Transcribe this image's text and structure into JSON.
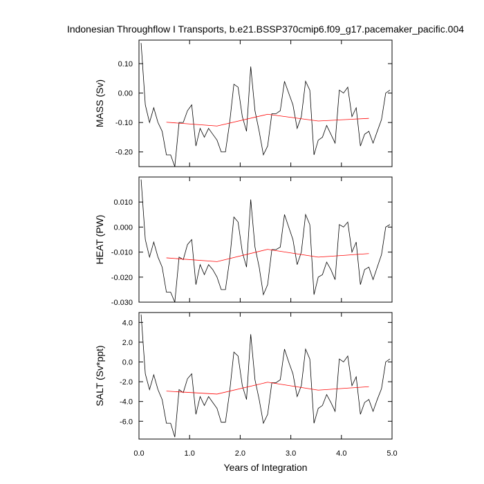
{
  "chart_data": {
    "type": "line",
    "title": "Indonesian Throughflow I Transports, b.e21.BSSP370cmip6.f09_g17.pacemaker_pacific.004",
    "xlabel": "Years of Integration",
    "xlim": [
      0,
      5
    ],
    "xticks": [
      0,
      1,
      2,
      3,
      4,
      5
    ],
    "xtick_labels": [
      "0.0",
      "1.0",
      "2.0",
      "3.0",
      "4.0",
      "5.0"
    ],
    "colors": {
      "raw": "#000000",
      "smoothed": "#ff0000"
    },
    "x_monthly": [
      0.042,
      0.125,
      0.208,
      0.292,
      0.375,
      0.458,
      0.542,
      0.625,
      0.708,
      0.792,
      0.875,
      0.958,
      1.042,
      1.125,
      1.208,
      1.292,
      1.375,
      1.458,
      1.542,
      1.625,
      1.708,
      1.792,
      1.875,
      1.958,
      2.042,
      2.125,
      2.208,
      2.292,
      2.375,
      2.458,
      2.542,
      2.625,
      2.708,
      2.792,
      2.875,
      2.958,
      3.042,
      3.125,
      3.208,
      3.292,
      3.375,
      3.458,
      3.542,
      3.625,
      3.708,
      3.792,
      3.875,
      3.958,
      4.042,
      4.125,
      4.208,
      4.292,
      4.375,
      4.458,
      4.542,
      4.625,
      4.708,
      4.792,
      4.875,
      4.958
    ],
    "x_annual": [
      0.542,
      1.542,
      2.542,
      3.542,
      4.542
    ],
    "panels": [
      {
        "ylabel": "MASS (Sv)",
        "ylim": [
          -0.25,
          0.18
        ],
        "yticks": [
          0.1,
          0.0,
          -0.1,
          -0.2
        ],
        "ytick_labels": [
          "0.10",
          "0.00",
          "-0.10",
          "-0.20"
        ],
        "raw": [
          0.17,
          -0.04,
          -0.1,
          -0.05,
          -0.1,
          -0.13,
          -0.21,
          -0.21,
          -0.25,
          -0.1,
          -0.1,
          -0.06,
          -0.04,
          -0.18,
          -0.12,
          -0.15,
          -0.12,
          -0.14,
          -0.16,
          -0.2,
          -0.2,
          -0.1,
          0.03,
          0.02,
          -0.08,
          -0.13,
          0.09,
          -0.06,
          -0.13,
          -0.21,
          -0.18,
          -0.07,
          -0.07,
          -0.06,
          0.04,
          0.0,
          -0.04,
          -0.12,
          -0.08,
          0.04,
          0.01,
          -0.21,
          -0.16,
          -0.15,
          -0.11,
          -0.14,
          -0.17,
          0.01,
          0.0,
          0.02,
          -0.08,
          -0.05,
          -0.18,
          -0.14,
          -0.13,
          -0.17,
          -0.13,
          -0.09,
          0.0,
          0.01
        ],
        "smoothed": [
          -0.099,
          -0.112,
          -0.072,
          -0.095,
          -0.086
        ]
      },
      {
        "ylabel": "HEAT (PW)",
        "ylim": [
          -0.03,
          0.02
        ],
        "yticks": [
          0.01,
          0.0,
          -0.01,
          -0.02,
          -0.03
        ],
        "ytick_labels": [
          "0.010",
          "0.000",
          "-0.010",
          "-0.020",
          "-0.030"
        ],
        "raw": [
          0.019,
          -0.005,
          -0.012,
          -0.006,
          -0.012,
          -0.016,
          -0.026,
          -0.026,
          -0.03,
          -0.012,
          -0.013,
          -0.007,
          -0.005,
          -0.023,
          -0.015,
          -0.019,
          -0.015,
          -0.017,
          -0.02,
          -0.025,
          -0.025,
          -0.013,
          0.004,
          0.002,
          -0.01,
          -0.016,
          0.011,
          -0.008,
          -0.016,
          -0.027,
          -0.023,
          -0.009,
          -0.009,
          -0.008,
          0.005,
          0.0,
          -0.005,
          -0.015,
          -0.01,
          0.005,
          0.001,
          -0.027,
          -0.02,
          -0.019,
          -0.014,
          -0.017,
          -0.021,
          0.001,
          0.0,
          0.002,
          -0.01,
          -0.006,
          -0.023,
          -0.017,
          -0.016,
          -0.021,
          -0.016,
          -0.011,
          0.0,
          0.001
        ],
        "smoothed": [
          -0.0123,
          -0.0138,
          -0.0089,
          -0.012,
          -0.0106
        ]
      },
      {
        "ylabel": "SALT (Sv*ppt)",
        "ylim": [
          -7.8,
          5.0
        ],
        "yticks": [
          4.0,
          2.0,
          0.0,
          -2.0,
          -4.0,
          -6.0
        ],
        "ytick_labels": [
          "4.0",
          "2.0",
          "0.0",
          "-2.0",
          "-4.0",
          "-6.0"
        ],
        "raw": [
          4.8,
          -1.2,
          -2.8,
          -1.3,
          -2.8,
          -3.8,
          -6.2,
          -6.2,
          -7.6,
          -2.8,
          -3.1,
          -1.7,
          -1.2,
          -5.3,
          -3.5,
          -4.4,
          -3.5,
          -4.1,
          -4.7,
          -6.1,
          -6.1,
          -3.0,
          1.0,
          0.6,
          -2.4,
          -3.8,
          2.8,
          -1.8,
          -3.8,
          -6.2,
          -5.3,
          -2.1,
          -2.1,
          -1.8,
          1.3,
          0.0,
          -1.2,
          -3.5,
          -2.4,
          1.3,
          0.3,
          -6.2,
          -4.7,
          -4.4,
          -3.3,
          -4.1,
          -5.0,
          0.3,
          0.0,
          0.6,
          -2.4,
          -1.5,
          -5.3,
          -4.1,
          -3.8,
          -5.0,
          -3.8,
          -2.7,
          0.0,
          0.3
        ],
        "smoothed": [
          -2.95,
          -3.25,
          -2.05,
          -2.85,
          -2.5
        ]
      }
    ]
  }
}
